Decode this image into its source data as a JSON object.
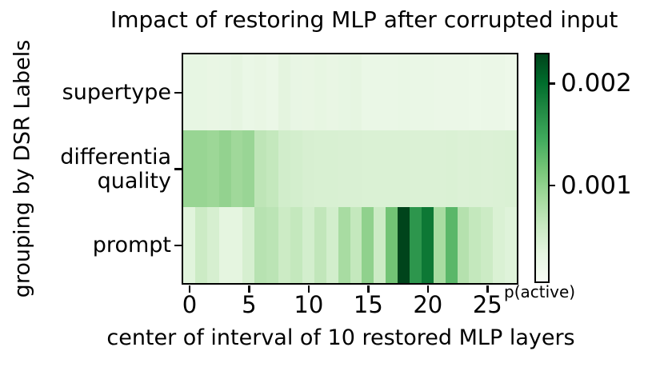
{
  "title": "Impact of restoring MLP after corrupted input",
  "chart_data": {
    "type": "heatmap",
    "title": "Impact of restoring MLP after corrupted input",
    "xlabel": "center of interval of 10 restored MLP layers",
    "ylabel": "grouping by DSR Labels",
    "x_range": [
      0,
      27
    ],
    "n_columns": 28,
    "x_ticks": [
      0,
      5,
      10,
      15,
      20,
      25
    ],
    "rows": [
      {
        "label": "supertype",
        "label_lines": [
          "supertype"
        ],
        "values": [
          0.0003,
          0.0003,
          0.00028,
          0.00029,
          0.00032,
          0.00026,
          0.00028,
          0.00025,
          0.00035,
          0.00029,
          0.00028,
          0.00031,
          0.00028,
          0.0003,
          0.00032,
          0.00026,
          0.00026,
          0.00026,
          0.00027,
          0.00026,
          0.00026,
          0.00024,
          0.00024,
          0.00024,
          0.00023,
          0.00024,
          0.00025,
          0.00022
        ]
      },
      {
        "label": "differentia quality",
        "label_lines": [
          "differentia",
          "quality"
        ],
        "values": [
          0.00095,
          0.00095,
          0.00092,
          0.00098,
          0.0009,
          0.00094,
          0.00068,
          0.00064,
          0.00052,
          0.0005,
          0.00047,
          0.00046,
          0.00046,
          0.00045,
          0.00045,
          0.00044,
          0.00044,
          0.00044,
          0.00044,
          0.00043,
          0.00043,
          0.00043,
          0.00044,
          0.00042,
          0.00043,
          0.00042,
          0.00043,
          0.00044
        ]
      },
      {
        "label": "prompt",
        "label_lines": [
          "prompt"
        ],
        "values": [
          0.00037,
          0.00057,
          0.00048,
          0.00034,
          0.00034,
          0.00048,
          0.00073,
          0.0007,
          0.00057,
          0.00064,
          0.0005,
          0.00066,
          0.00051,
          0.00084,
          0.00064,
          0.001,
          0.00057,
          0.00118,
          0.0023,
          0.00163,
          0.0019,
          0.00084,
          0.00131,
          0.00075,
          0.00064,
          0.00057,
          0.00044,
          0.00039
        ]
      }
    ],
    "colorbar": {
      "label": "p(active)",
      "vmin": 6e-05,
      "vmax": 0.00228,
      "ticks": [
        {
          "value": 0.002,
          "label": "0.002"
        },
        {
          "value": 0.001,
          "label": "0.001"
        }
      ]
    },
    "colormap": {
      "name": "Greens",
      "anchors": [
        "#f7fcf5",
        "#e5f5e0",
        "#c7e9c0",
        "#a1d99b",
        "#74c476",
        "#41ab5d",
        "#238b45",
        "#006d2c",
        "#00441b"
      ]
    }
  }
}
